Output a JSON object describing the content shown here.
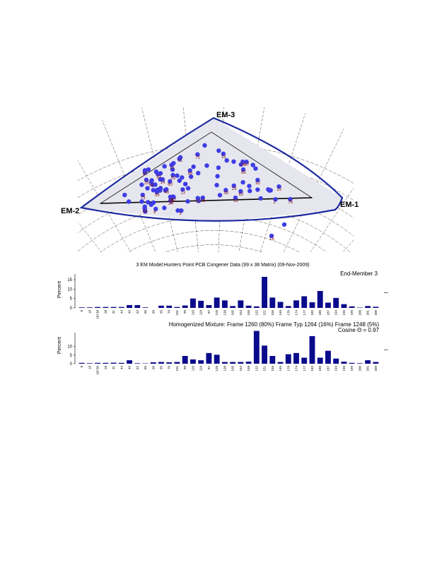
{
  "chart_data": [
    {
      "type": "scatter",
      "title": "",
      "vertex_labels": [
        "EM-3",
        "EM-2",
        "EM-1"
      ],
      "point_labels": [
        "26",
        "60",
        "21",
        "24",
        "82",
        "6",
        "39",
        "46",
        "84",
        "97",
        "65",
        "76",
        "29",
        "10",
        "16",
        "3",
        "32",
        "8",
        "17",
        "83",
        "81",
        "72",
        "31",
        "11",
        "2",
        "22",
        "13",
        "15",
        "63",
        "14",
        "94",
        "53",
        "48",
        "69",
        "73",
        "92",
        "98",
        "99"
      ]
    },
    {
      "type": "bar",
      "title": "3 EM Model:Hunters Point PCB Congener Data (99 x 38 Matrix) (09-Nov-2009)",
      "panel_label": "End-Member 3",
      "ylabel": "Percent",
      "yticks": [
        "0",
        "5",
        "10",
        "15"
      ],
      "ylim": [
        0,
        18
      ],
      "categories": [
        "8",
        "18",
        "18+30",
        "28",
        "31",
        "44",
        "49",
        "52",
        "66",
        "90",
        "95",
        "70",
        "101",
        "99",
        "110",
        "118",
        "87",
        "128",
        "138",
        "105",
        "153",
        "158",
        "132",
        "151",
        "156",
        "149",
        "170",
        "174",
        "177",
        "183",
        "180",
        "187",
        "194",
        "195",
        "199",
        "206",
        "201",
        "209"
      ],
      "values": [
        0.3,
        0.3,
        0.5,
        0.5,
        0.5,
        0.5,
        1.5,
        1.5,
        0.3,
        0.0,
        1.2,
        1.2,
        0.5,
        1.3,
        5.0,
        3.8,
        1.5,
        5.5,
        4.0,
        1.0,
        4.0,
        1.2,
        0.8,
        16.5,
        5.5,
        3.2,
        1.0,
        4.0,
        6.2,
        3.0,
        9.0,
        2.8,
        5.3,
        2.0,
        0.8,
        0.2,
        1.0,
        0.6
      ]
    },
    {
      "type": "bar",
      "panel_label": "Homogenized Mixture:  Frame 1260 (80%) Frame Typ 1264 (16%) Frame 1248 (5%)",
      "cosine_label": "Cosine Θ = 0.97",
      "ylabel": "Percent",
      "yticks": [
        "0",
        "5",
        "10"
      ],
      "ylim": [
        0,
        18
      ],
      "categories": [
        "8",
        "18",
        "18+30",
        "28",
        "31",
        "44",
        "49",
        "52",
        "66",
        "90",
        "95",
        "70",
        "101",
        "99",
        "110",
        "118",
        "87",
        "128",
        "138",
        "105",
        "153",
        "158",
        "132",
        "151",
        "156",
        "149",
        "170",
        "174",
        "177",
        "183",
        "180",
        "187",
        "194",
        "195",
        "199",
        "206",
        "201",
        "209"
      ],
      "values": [
        0.5,
        0.3,
        0.5,
        0.5,
        0.6,
        0.5,
        2.0,
        0.3,
        0.2,
        0.8,
        1.0,
        0.8,
        1.0,
        4.5,
        2.5,
        2.0,
        6.2,
        5.2,
        1.0,
        1.0,
        1.0,
        1.2,
        19.0,
        10.5,
        4.5,
        1.0,
        5.5,
        6.2,
        3.5,
        16.0,
        3.5,
        7.5,
        3.0,
        1.2,
        0.5,
        0.3,
        2.0,
        1.0
      ]
    }
  ],
  "colors": {
    "triangle_outer": "#1c2aa0",
    "points": "#3d3de6",
    "point_labels": "#7a1010",
    "grid": "#5a4a40",
    "bars": "#0a0a8c"
  }
}
